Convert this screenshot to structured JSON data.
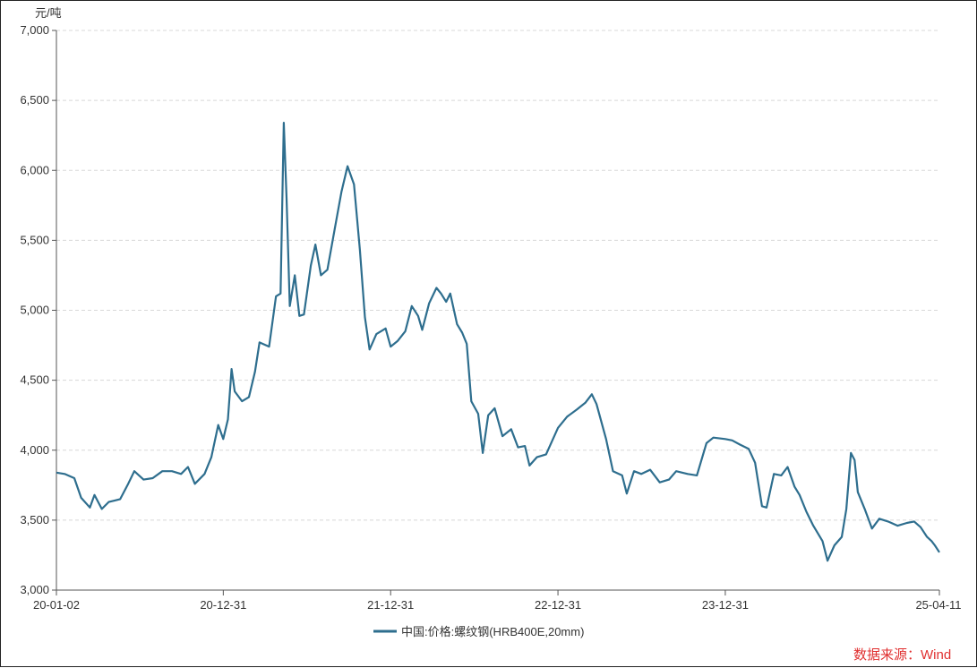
{
  "chart_data": {
    "type": "line",
    "unit_label": "元/吨",
    "ylim": [
      3000,
      7000
    ],
    "yticks": [
      "3,000",
      "3,500",
      "4,000",
      "4,500",
      "5,000",
      "5,500",
      "6,000",
      "6,500",
      "7,000"
    ],
    "xticks": [
      "20-01-02",
      "20-12-31",
      "21-12-31",
      "22-12-31",
      "23-12-31",
      "25-04-11"
    ],
    "grid": true,
    "legend_position": "bottom",
    "line_color": "#2e6e8e",
    "series": [
      {
        "name": "中国:价格:螺纹钢(HRB400E,20mm)",
        "points": [
          [
            "20-01-02",
            3840
          ],
          [
            "20-01-20",
            3830
          ],
          [
            "20-02-10",
            3800
          ],
          [
            "20-02-25",
            3660
          ],
          [
            "20-03-15",
            3590
          ],
          [
            "20-03-25",
            3680
          ],
          [
            "20-04-10",
            3580
          ],
          [
            "20-04-25",
            3630
          ],
          [
            "20-05-20",
            3650
          ],
          [
            "20-06-05",
            3750
          ],
          [
            "20-06-20",
            3850
          ],
          [
            "20-07-10",
            3790
          ],
          [
            "20-07-30",
            3800
          ],
          [
            "20-08-20",
            3850
          ],
          [
            "20-09-10",
            3850
          ],
          [
            "20-09-30",
            3830
          ],
          [
            "20-10-15",
            3880
          ],
          [
            "20-10-30",
            3760
          ],
          [
            "20-11-20",
            3830
          ],
          [
            "20-12-05",
            3950
          ],
          [
            "20-12-20",
            4180
          ],
          [
            "20-12-31",
            4080
          ],
          [
            "21-01-10",
            4220
          ],
          [
            "21-01-18",
            4580
          ],
          [
            "21-01-25",
            4420
          ],
          [
            "21-02-10",
            4350
          ],
          [
            "21-02-25",
            4380
          ],
          [
            "21-03-10",
            4560
          ],
          [
            "21-03-20",
            4770
          ],
          [
            "21-04-10",
            4740
          ],
          [
            "21-04-25",
            5100
          ],
          [
            "21-05-05",
            5120
          ],
          [
            "21-05-12",
            6340
          ],
          [
            "21-05-18",
            5800
          ],
          [
            "21-05-25",
            5030
          ],
          [
            "21-06-05",
            5250
          ],
          [
            "21-06-15",
            4960
          ],
          [
            "21-06-25",
            4970
          ],
          [
            "21-07-10",
            5320
          ],
          [
            "21-07-20",
            5470
          ],
          [
            "21-08-01",
            5250
          ],
          [
            "21-08-15",
            5290
          ],
          [
            "21-09-01",
            5600
          ],
          [
            "21-09-15",
            5850
          ],
          [
            "21-09-28",
            6030
          ],
          [
            "21-10-12",
            5900
          ],
          [
            "21-10-25",
            5430
          ],
          [
            "21-11-05",
            4950
          ],
          [
            "21-11-15",
            4720
          ],
          [
            "21-11-30",
            4830
          ],
          [
            "21-12-20",
            4870
          ],
          [
            "21-12-31",
            4740
          ],
          [
            "22-01-15",
            4780
          ],
          [
            "22-02-01",
            4850
          ],
          [
            "22-02-15",
            5030
          ],
          [
            "22-03-01",
            4960
          ],
          [
            "22-03-10",
            4860
          ],
          [
            "22-03-25",
            5050
          ],
          [
            "22-04-10",
            5160
          ],
          [
            "22-04-20",
            5120
          ],
          [
            "22-05-01",
            5060
          ],
          [
            "22-05-10",
            5120
          ],
          [
            "22-05-25",
            4900
          ],
          [
            "22-06-05",
            4840
          ],
          [
            "22-06-15",
            4760
          ],
          [
            "22-06-25",
            4350
          ],
          [
            "22-07-10",
            4260
          ],
          [
            "22-07-20",
            3980
          ],
          [
            "22-08-01",
            4250
          ],
          [
            "22-08-15",
            4300
          ],
          [
            "22-09-01",
            4100
          ],
          [
            "22-09-20",
            4150
          ],
          [
            "22-10-05",
            4020
          ],
          [
            "22-10-20",
            4030
          ],
          [
            "22-10-30",
            3890
          ],
          [
            "22-11-15",
            3950
          ],
          [
            "22-12-05",
            3970
          ],
          [
            "22-12-31",
            4160
          ],
          [
            "23-01-20",
            4240
          ],
          [
            "23-02-10",
            4290
          ],
          [
            "23-03-01",
            4340
          ],
          [
            "23-03-15",
            4400
          ],
          [
            "23-03-25",
            4330
          ],
          [
            "23-04-15",
            4080
          ],
          [
            "23-04-30",
            3850
          ],
          [
            "23-05-20",
            3820
          ],
          [
            "23-05-30",
            3690
          ],
          [
            "23-06-15",
            3850
          ],
          [
            "23-07-01",
            3830
          ],
          [
            "23-07-20",
            3860
          ],
          [
            "23-08-10",
            3770
          ],
          [
            "23-08-30",
            3790
          ],
          [
            "23-09-15",
            3850
          ],
          [
            "23-10-10",
            3830
          ],
          [
            "23-10-30",
            3820
          ],
          [
            "23-11-20",
            4050
          ],
          [
            "23-12-05",
            4090
          ],
          [
            "23-12-31",
            4080
          ],
          [
            "24-01-15",
            4070
          ],
          [
            "24-02-01",
            4040
          ],
          [
            "24-02-20",
            4010
          ],
          [
            "24-03-05",
            3910
          ],
          [
            "24-03-20",
            3600
          ],
          [
            "24-03-30",
            3590
          ],
          [
            "24-04-15",
            3830
          ],
          [
            "24-05-01",
            3820
          ],
          [
            "24-05-15",
            3880
          ],
          [
            "24-05-30",
            3740
          ],
          [
            "24-06-10",
            3680
          ],
          [
            "24-06-25",
            3560
          ],
          [
            "24-07-10",
            3460
          ],
          [
            "24-07-30",
            3350
          ],
          [
            "24-08-10",
            3210
          ],
          [
            "24-08-25",
            3320
          ],
          [
            "24-09-10",
            3380
          ],
          [
            "24-09-20",
            3580
          ],
          [
            "24-09-30",
            3980
          ],
          [
            "24-10-08",
            3930
          ],
          [
            "24-10-15",
            3700
          ],
          [
            "24-10-30",
            3580
          ],
          [
            "24-11-15",
            3440
          ],
          [
            "24-12-01",
            3510
          ],
          [
            "24-12-20",
            3490
          ],
          [
            "25-01-10",
            3460
          ],
          [
            "25-01-30",
            3480
          ],
          [
            "25-02-15",
            3490
          ],
          [
            "25-03-01",
            3450
          ],
          [
            "25-03-15",
            3380
          ],
          [
            "25-03-25",
            3350
          ],
          [
            "25-04-01",
            3320
          ],
          [
            "25-04-11",
            3270
          ]
        ]
      }
    ],
    "source": "数据来源：Wind"
  }
}
